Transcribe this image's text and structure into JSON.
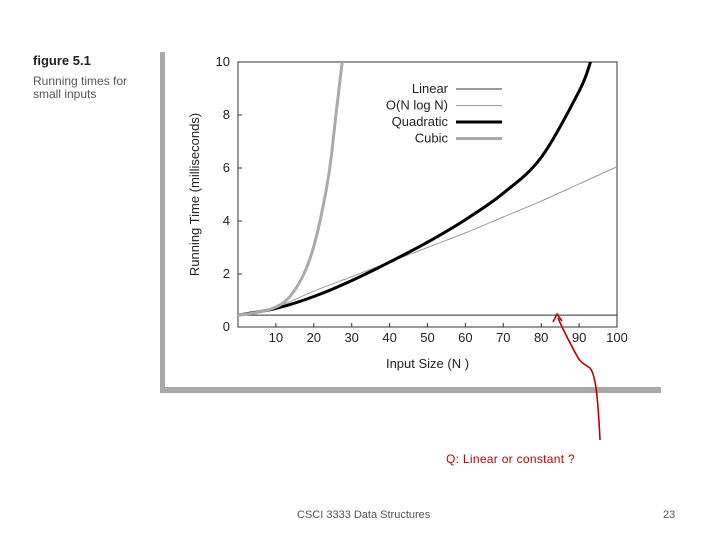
{
  "figure": {
    "label": "figure 5.1",
    "caption": "Running times for small inputs"
  },
  "annotation": {
    "question": "Q: Linear or constant ?",
    "arrow_color": "#c00000"
  },
  "footer": {
    "course": "CSCI 3333 Data Structures",
    "page": "23"
  },
  "chart_data": {
    "type": "line",
    "title": "",
    "xlabel": "Input Size (N )",
    "ylabel": "Running Time (milliseconds)",
    "xlim": [
      0,
      100
    ],
    "ylim": [
      0,
      10
    ],
    "xticks": [
      10,
      20,
      30,
      40,
      50,
      60,
      70,
      80,
      90,
      100
    ],
    "yticks": [
      0,
      2,
      4,
      6,
      8,
      10
    ],
    "grid": false,
    "legend_position": "top-right",
    "series": [
      {
        "name": "Linear",
        "color": "#333333",
        "style": "thin",
        "x": [
          0,
          10,
          20,
          30,
          40,
          50,
          60,
          70,
          80,
          90,
          100
        ],
        "y": [
          0.45,
          0.45,
          0.45,
          0.45,
          0.45,
          0.45,
          0.45,
          0.45,
          0.45,
          0.45,
          0.45
        ]
      },
      {
        "name": "O(N log N)",
        "color": "#999999",
        "style": "thin",
        "x": [
          0,
          10,
          20,
          30,
          40,
          50,
          60,
          70,
          80,
          90,
          100
        ],
        "y": [
          0.45,
          0.75,
          1.35,
          1.9,
          2.45,
          3.0,
          3.55,
          4.15,
          4.75,
          5.4,
          6.05
        ]
      },
      {
        "name": "Quadratic",
        "color": "#000000",
        "style": "thick",
        "x": [
          0,
          10,
          20,
          30,
          40,
          50,
          60,
          70,
          80,
          90,
          93
        ],
        "y": [
          0.45,
          0.7,
          1.15,
          1.75,
          2.45,
          3.2,
          4.05,
          5.05,
          6.4,
          8.9,
          10.0
        ]
      },
      {
        "name": "Cubic",
        "color": "#aaaaaa",
        "style": "thick",
        "x": [
          0,
          5,
          10,
          14,
          18,
          21,
          24,
          26,
          27.5
        ],
        "y": [
          0.45,
          0.55,
          0.75,
          1.2,
          2.2,
          3.6,
          5.8,
          8.2,
          10.0
        ]
      }
    ]
  }
}
